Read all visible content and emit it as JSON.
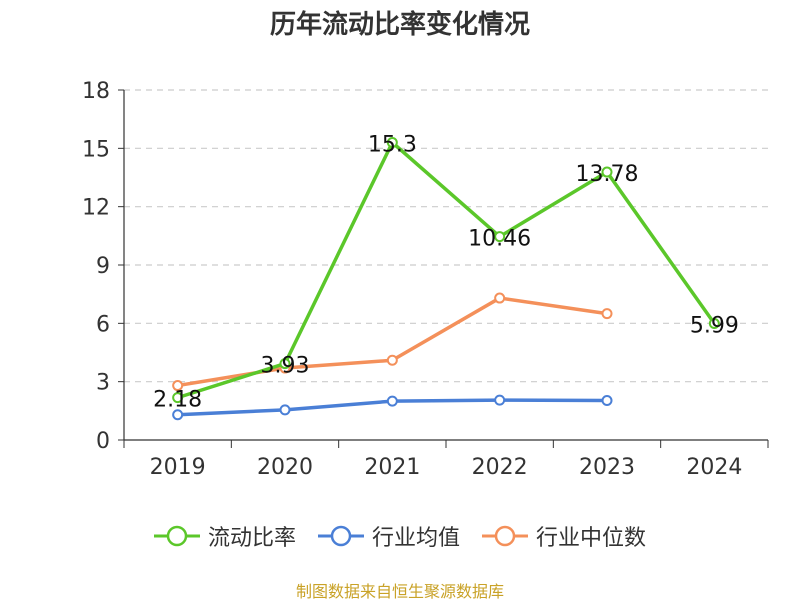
{
  "chart_data": {
    "type": "line",
    "title": "历年流动比率变化情况",
    "categories": [
      "2019",
      "2020",
      "2021",
      "2022",
      "2023",
      "2024"
    ],
    "ylim": [
      0,
      18
    ],
    "yticks": [
      0,
      3,
      6,
      9,
      12,
      15,
      18
    ],
    "grid": true,
    "legend_position": "bottom",
    "series": [
      {
        "name": "流动比率",
        "color": "#5bc72a",
        "values": [
          2.18,
          3.93,
          15.3,
          10.46,
          13.78,
          5.99
        ],
        "labels": [
          "2.18",
          "3.93",
          "15.3",
          "10.46",
          "13.78",
          "5.99"
        ]
      },
      {
        "name": "行业均值",
        "color": "#4a7fd6",
        "values": [
          1.3,
          1.55,
          2.0,
          2.05,
          2.03,
          null
        ]
      },
      {
        "name": "行业中位数",
        "color": "#f4905a",
        "values": [
          2.8,
          3.7,
          4.1,
          7.3,
          6.5,
          null
        ]
      }
    ]
  },
  "source": "制图数据来自恒生聚源数据库"
}
